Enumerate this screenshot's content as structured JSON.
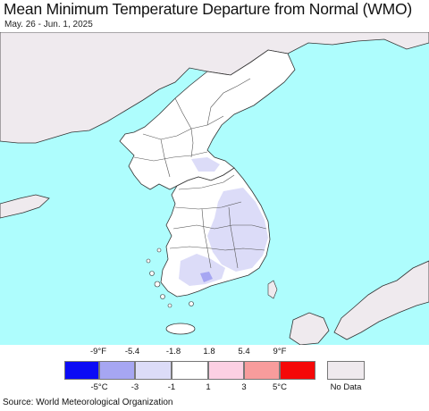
{
  "title": "Mean Minimum Temperature Departure from Normal (WMO)",
  "subtitle": "May. 26 - Jun. 1, 2025",
  "colors": {
    "ocean": "#aefdfd",
    "land_normal": "#ffffff",
    "land_nodata": "#efeaee",
    "border": "#333333"
  },
  "legend": {
    "fahrenheit_labels": [
      "-9°F",
      "-5.4",
      "-1.8",
      "1.8",
      "5.4",
      "9°F"
    ],
    "celsius_labels": [
      "-5°C",
      "-3",
      "-1",
      "1",
      "3",
      "5°C"
    ],
    "bins": [
      {
        "color": "#0b0bf5"
      },
      {
        "color": "#a6a6f2"
      },
      {
        "color": "#dcdcf8"
      },
      {
        "color": "#ffffff"
      },
      {
        "color": "#fcd0e3"
      },
      {
        "color": "#f89c9c"
      },
      {
        "color": "#f50808"
      }
    ],
    "nodata_color": "#efeaee",
    "nodata_label": "No Data"
  },
  "source": "Source: World Meteorological Organization"
}
